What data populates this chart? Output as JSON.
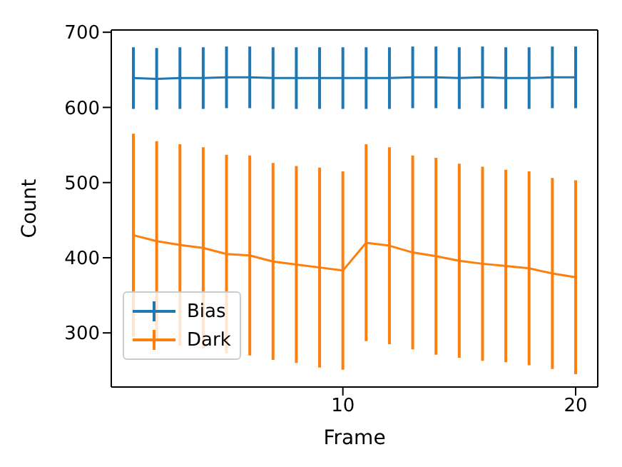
{
  "chart_data": {
    "type": "line",
    "xlabel": "Frame",
    "ylabel": "Count",
    "x": [
      1,
      2,
      3,
      4,
      5,
      6,
      7,
      8,
      9,
      10,
      11,
      12,
      13,
      14,
      15,
      16,
      17,
      18,
      19,
      20
    ],
    "series": [
      {
        "name": "Bias",
        "color": "#1f77b4",
        "values": [
          639,
          638,
          639,
          639,
          640,
          640,
          639,
          639,
          639,
          639,
          639,
          639,
          640,
          640,
          639,
          640,
          639,
          639,
          640,
          640
        ],
        "errors": [
          41,
          41,
          41,
          41,
          41,
          41,
          41,
          41,
          41,
          41,
          41,
          41,
          41,
          41,
          41,
          41,
          41,
          41,
          41,
          41
        ]
      },
      {
        "name": "Dark",
        "color": "#ff7f0e",
        "values": [
          430,
          422,
          417,
          413,
          405,
          403,
          395,
          391,
          387,
          383,
          420,
          416,
          407,
          402,
          396,
          392,
          389,
          386,
          379,
          374
        ],
        "errors": [
          135,
          133,
          134,
          134,
          132,
          133,
          131,
          131,
          133,
          132,
          131,
          131,
          129,
          131,
          129,
          129,
          128,
          129,
          127,
          129
        ]
      }
    ],
    "xlim": [
      0.05,
      20.95
    ],
    "xticks": [
      10,
      20
    ],
    "ylim": [
      228,
      703
    ],
    "yticks": [
      300,
      400,
      500,
      600,
      700
    ],
    "legend": "bottom left"
  }
}
